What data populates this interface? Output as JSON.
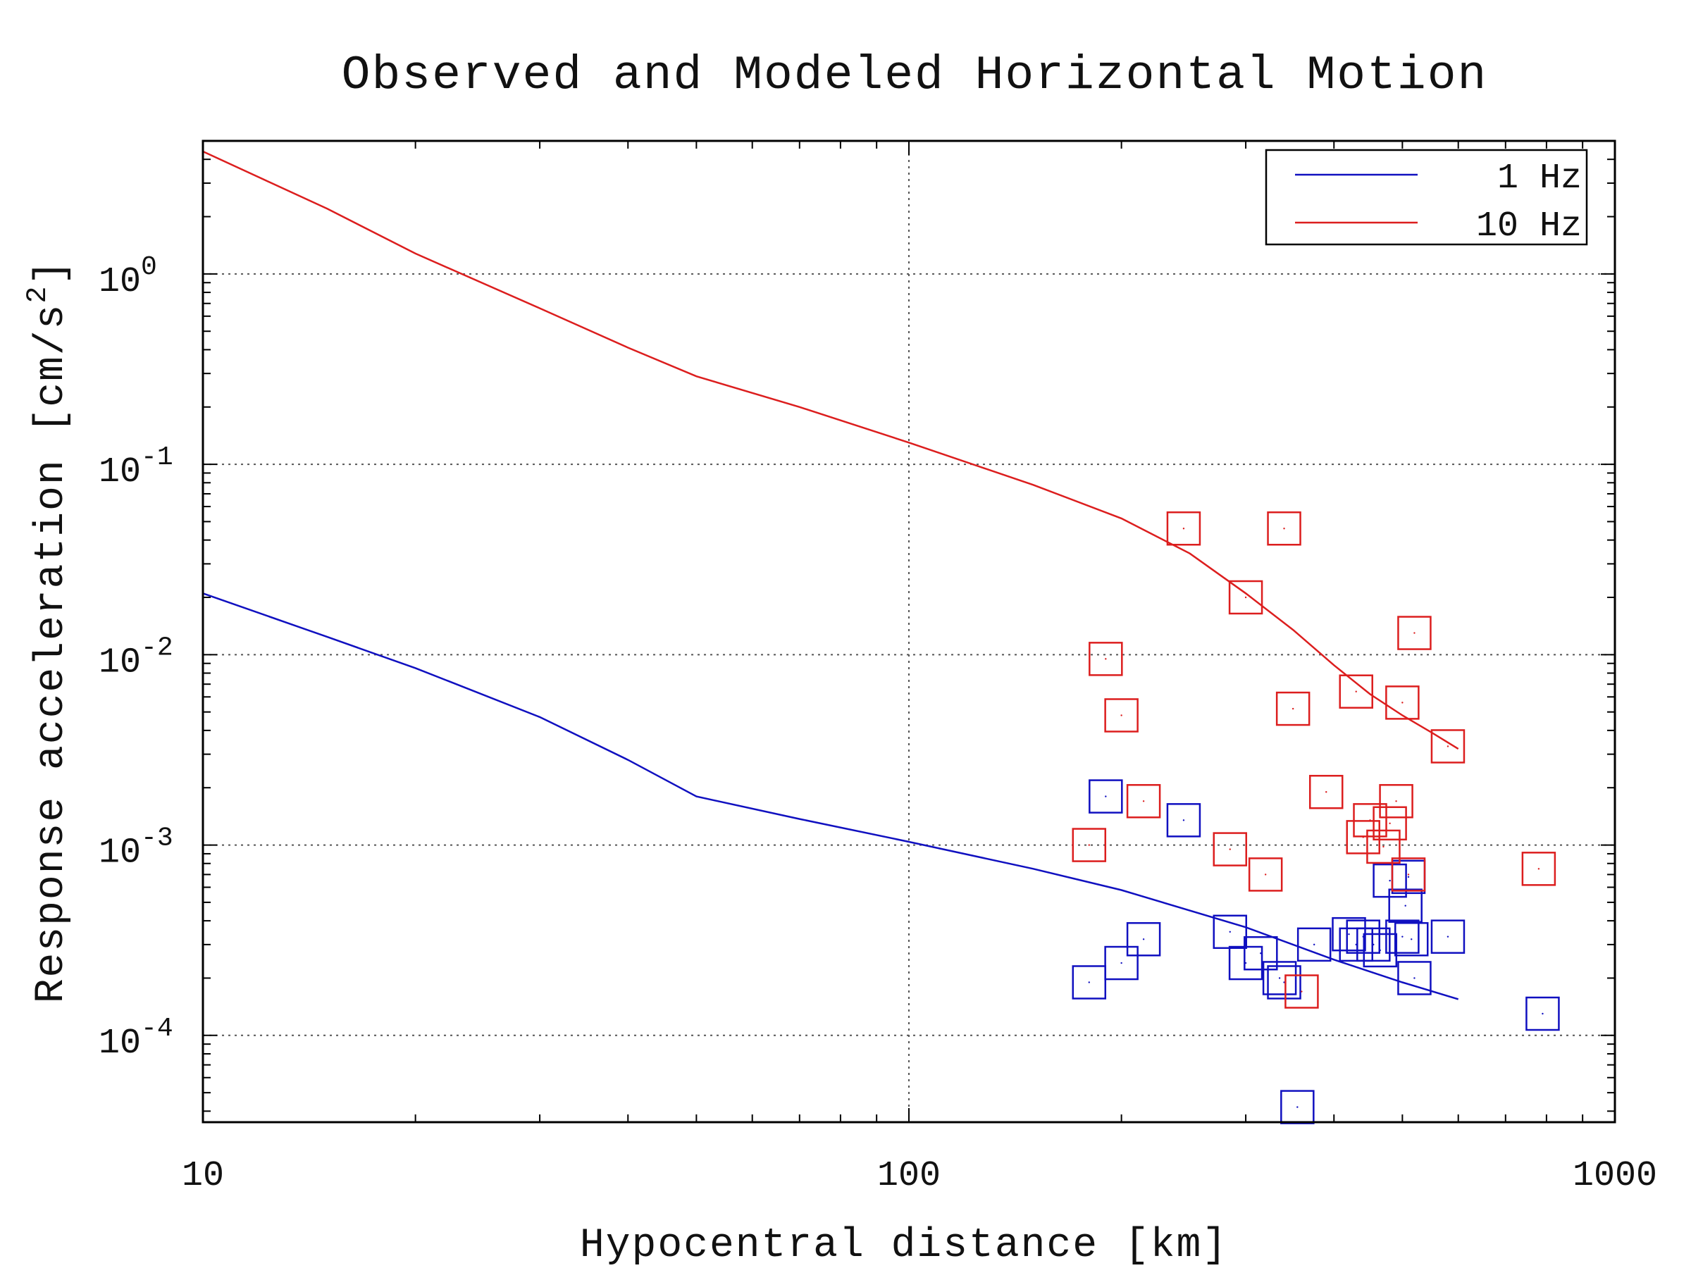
{
  "chart_data": {
    "type": "scatter",
    "title": "Observed and Modeled Horizontal Motion",
    "xlabel": "Hypocentral distance [km]",
    "ylabel": "Response acceleration [cm/s²]",
    "ylabel_parts": {
      "main": "Response acceleration [cm/s",
      "sup": "2",
      "end": "]"
    },
    "x_scale": "log",
    "y_scale": "log",
    "xlim": [
      10,
      1000
    ],
    "ylim": [
      3.5e-05,
      5
    ],
    "x_ticks": [
      {
        "value": 10,
        "label": "10"
      },
      {
        "value": 100,
        "label": "100"
      },
      {
        "value": 1000,
        "label": "1000"
      }
    ],
    "y_ticks": [
      {
        "value": 1,
        "base": "10",
        "exp": "0"
      },
      {
        "value": 0.1,
        "base": "10",
        "exp": "-1"
      },
      {
        "value": 0.01,
        "base": "10",
        "exp": "-2"
      },
      {
        "value": 0.001,
        "base": "10",
        "exp": "-3"
      },
      {
        "value": 0.0001,
        "base": "10",
        "exp": "-4"
      }
    ],
    "grid": true,
    "legend_position": "top-right",
    "series": [
      {
        "name": "1 Hz",
        "color": "#1010c0",
        "model": {
          "x": [
            10,
            15,
            20,
            30,
            40,
            50,
            70,
            100,
            150,
            200,
            300,
            400,
            500,
            600
          ],
          "y": [
            0.021,
            0.0124,
            0.0085,
            0.0047,
            0.0028,
            0.0018,
            0.00137,
            0.00104,
            0.00075,
            0.00058,
            0.00037,
            0.00025,
            0.00019,
            0.000155
          ]
        },
        "observed": {
          "x": [
            180,
            190,
            200,
            215,
            245,
            285,
            300,
            315,
            335,
            340,
            355,
            375,
            420,
            430,
            440,
            455,
            465,
            480,
            500,
            505,
            510,
            515,
            520,
            580,
            790
          ],
          "y": [
            0.00019,
            0.0018,
            0.00024,
            0.00032,
            0.00135,
            0.00035,
            0.00024,
            0.00027,
            0.0002,
            0.00019,
            4.2e-05,
            0.0003,
            0.00034,
            0.0003,
            0.00033,
            0.0003,
            0.00028,
            0.00065,
            0.00033,
            0.00048,
            0.00068,
            0.00032,
            0.0002,
            0.00033,
            0.00013
          ]
        }
      },
      {
        "name": "10 Hz",
        "color": "#dc1e1e",
        "model": {
          "x": [
            10,
            15,
            20,
            30,
            40,
            50,
            70,
            100,
            150,
            200,
            250,
            300,
            350,
            400,
            450,
            500,
            550,
            600
          ],
          "y": [
            4.4,
            2.2,
            1.28,
            0.66,
            0.41,
            0.29,
            0.2,
            0.13,
            0.078,
            0.052,
            0.034,
            0.021,
            0.0135,
            0.0088,
            0.0062,
            0.0048,
            0.0039,
            0.0032
          ]
        },
        "observed": {
          "x": [
            180,
            190,
            200,
            215,
            245,
            285,
            300,
            320,
            340,
            350,
            360,
            390,
            430,
            440,
            450,
            470,
            480,
            490,
            500,
            510,
            520,
            580,
            780
          ],
          "y": [
            0.001,
            0.0095,
            0.0048,
            0.0017,
            0.046,
            0.00095,
            0.02,
            0.0007,
            0.046,
            0.0052,
            0.00017,
            0.0019,
            0.0064,
            0.0011,
            0.00135,
            0.00098,
            0.0013,
            0.0017,
            0.0056,
            0.0007,
            0.013,
            0.0033,
            0.00075
          ]
        }
      }
    ]
  }
}
